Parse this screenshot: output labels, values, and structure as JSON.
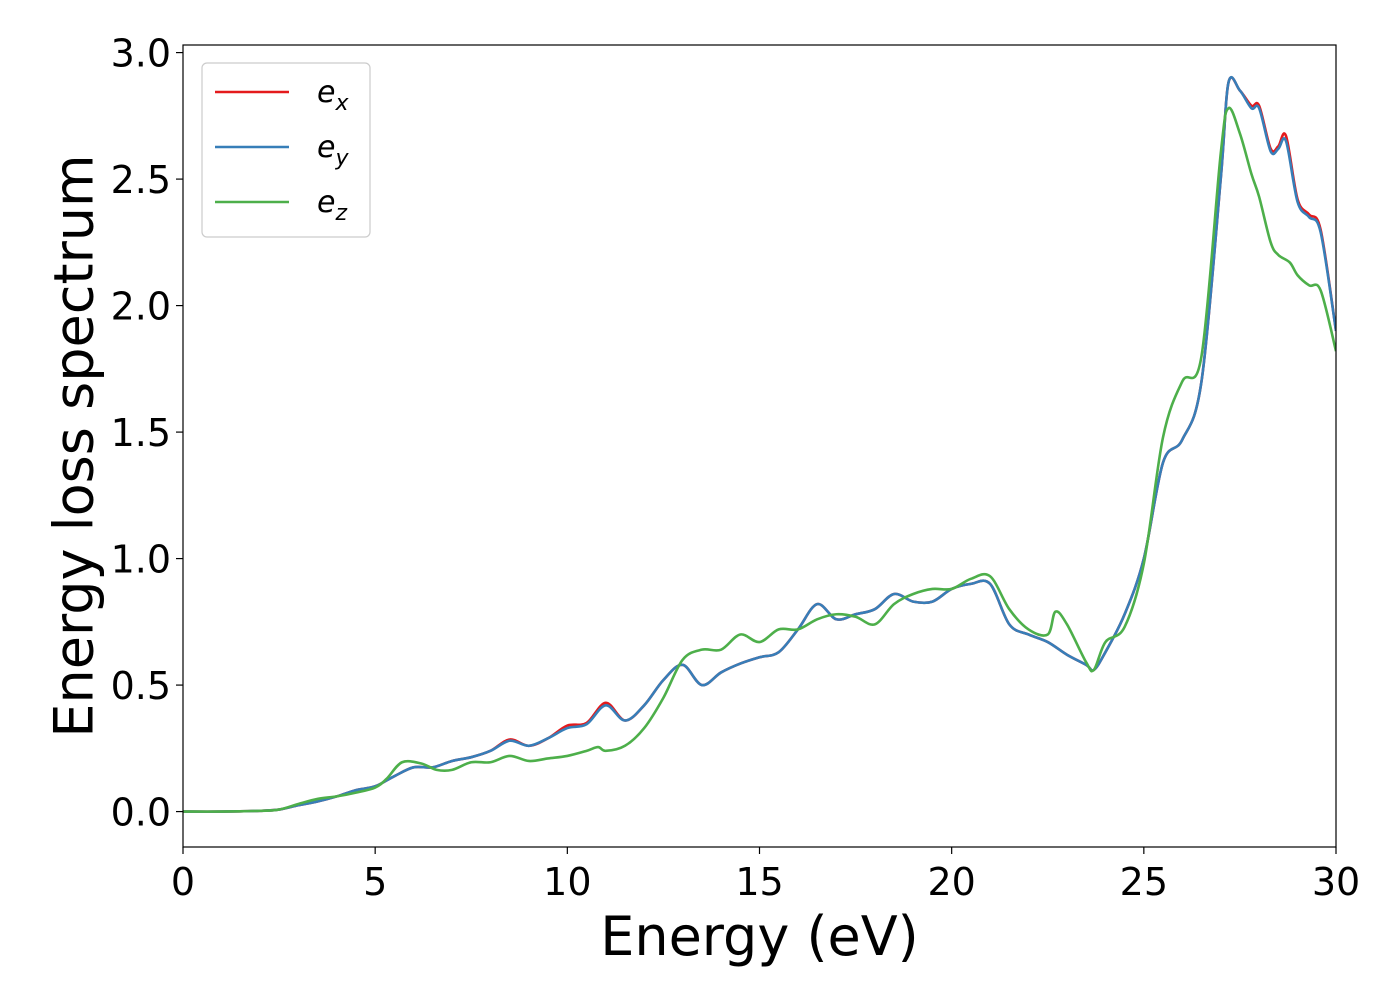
{
  "chart_data": {
    "type": "line",
    "xlabel": "Energy (eV)",
    "ylabel": "Energy loss spectrum",
    "xlim": [
      0,
      30
    ],
    "ylim": [
      -0.14,
      3.03
    ],
    "xticks": [
      0,
      5,
      10,
      15,
      20,
      25,
      30
    ],
    "xtick_labels": [
      "0",
      "5",
      "10",
      "15",
      "20",
      "25",
      "30"
    ],
    "yticks": [
      0.0,
      0.5,
      1.0,
      1.5,
      2.0,
      2.5,
      3.0
    ],
    "ytick_labels": [
      "0.0",
      "0.5",
      "1.0",
      "1.5",
      "2.0",
      "2.5",
      "3.0"
    ],
    "grid": false,
    "legend_position": "top-left",
    "series": [
      {
        "name": "e",
        "sub": "x",
        "color": "#e41a1c",
        "x": [
          0,
          1,
          2,
          2.5,
          3,
          3.5,
          4,
          4.5,
          5,
          5.5,
          6,
          6.5,
          7,
          7.5,
          8,
          8.5,
          9,
          9.5,
          10,
          10.5,
          11,
          11.5,
          12,
          12.5,
          13,
          13.5,
          14,
          14.5,
          15,
          15.5,
          16,
          16.5,
          17,
          17.5,
          18,
          18.5,
          19,
          19.5,
          20,
          20.5,
          21,
          21.5,
          22,
          22.5,
          23,
          23.5,
          23.7,
          24,
          24.5,
          25,
          25.5,
          26,
          26.5,
          27,
          27.2,
          27.5,
          27.8,
          28,
          28.3,
          28.5,
          28.7,
          29,
          29.3,
          29.6,
          30
        ],
        "y": [
          0,
          0,
          0.003,
          0.008,
          0.025,
          0.04,
          0.06,
          0.085,
          0.1,
          0.14,
          0.175,
          0.175,
          0.2,
          0.215,
          0.24,
          0.285,
          0.26,
          0.29,
          0.34,
          0.35,
          0.43,
          0.36,
          0.42,
          0.52,
          0.58,
          0.5,
          0.55,
          0.585,
          0.61,
          0.63,
          0.72,
          0.82,
          0.76,
          0.78,
          0.8,
          0.86,
          0.83,
          0.83,
          0.88,
          0.9,
          0.9,
          0.74,
          0.7,
          0.67,
          0.62,
          0.58,
          0.56,
          0.63,
          0.78,
          1.0,
          1.38,
          1.47,
          1.7,
          2.5,
          2.88,
          2.85,
          2.79,
          2.79,
          2.62,
          2.63,
          2.67,
          2.42,
          2.36,
          2.3,
          1.9
        ]
      },
      {
        "name": "e",
        "sub": "y",
        "color": "#377eb8",
        "x": [
          0,
          1,
          2,
          2.5,
          3,
          3.5,
          4,
          4.5,
          5,
          5.5,
          6,
          6.5,
          7,
          7.5,
          8,
          8.5,
          9,
          9.5,
          10,
          10.5,
          11,
          11.5,
          12,
          12.5,
          13,
          13.5,
          14,
          14.5,
          15,
          15.5,
          16,
          16.5,
          17,
          17.5,
          18,
          18.5,
          19,
          19.5,
          20,
          20.5,
          21,
          21.5,
          22,
          22.5,
          23,
          23.5,
          23.7,
          24,
          24.5,
          25,
          25.5,
          26,
          26.5,
          27,
          27.2,
          27.5,
          27.8,
          28,
          28.3,
          28.5,
          28.7,
          29,
          29.3,
          29.6,
          30
        ],
        "y": [
          0,
          0,
          0.003,
          0.008,
          0.025,
          0.04,
          0.06,
          0.085,
          0.1,
          0.14,
          0.175,
          0.175,
          0.2,
          0.215,
          0.24,
          0.28,
          0.26,
          0.29,
          0.33,
          0.345,
          0.42,
          0.36,
          0.42,
          0.52,
          0.58,
          0.5,
          0.55,
          0.585,
          0.61,
          0.63,
          0.72,
          0.82,
          0.76,
          0.78,
          0.8,
          0.86,
          0.83,
          0.83,
          0.88,
          0.9,
          0.9,
          0.74,
          0.7,
          0.67,
          0.62,
          0.58,
          0.56,
          0.63,
          0.78,
          1.0,
          1.38,
          1.47,
          1.7,
          2.5,
          2.88,
          2.85,
          2.78,
          2.78,
          2.61,
          2.62,
          2.65,
          2.41,
          2.35,
          2.29,
          1.9
        ]
      },
      {
        "name": "e",
        "sub": "z",
        "color": "#4daf4a",
        "x": [
          0,
          1,
          2,
          2.5,
          3,
          3.5,
          4,
          4.5,
          5,
          5.3,
          5.7,
          6.2,
          6.6,
          7,
          7.5,
          8,
          8.5,
          9,
          9.5,
          10,
          10.5,
          10.8,
          11,
          11.5,
          12,
          12.5,
          13,
          13.5,
          14,
          14.5,
          15,
          15.5,
          16,
          16.5,
          17,
          17.5,
          18,
          18.5,
          19,
          19.5,
          20,
          20.5,
          21,
          21.5,
          22,
          22.5,
          22.7,
          23,
          23.5,
          23.7,
          24,
          24.5,
          25,
          25.5,
          26,
          26.5,
          27,
          27.2,
          27.5,
          27.8,
          28,
          28.3,
          28.5,
          28.8,
          29,
          29.3,
          29.6,
          30
        ],
        "y": [
          0,
          0,
          0.003,
          0.008,
          0.03,
          0.05,
          0.06,
          0.075,
          0.095,
          0.13,
          0.195,
          0.19,
          0.165,
          0.165,
          0.195,
          0.195,
          0.22,
          0.2,
          0.21,
          0.22,
          0.24,
          0.255,
          0.24,
          0.26,
          0.33,
          0.45,
          0.6,
          0.64,
          0.64,
          0.7,
          0.67,
          0.72,
          0.72,
          0.76,
          0.78,
          0.77,
          0.74,
          0.82,
          0.86,
          0.88,
          0.88,
          0.92,
          0.93,
          0.8,
          0.72,
          0.7,
          0.79,
          0.74,
          0.59,
          0.56,
          0.67,
          0.73,
          0.98,
          1.48,
          1.7,
          1.8,
          2.6,
          2.78,
          2.68,
          2.52,
          2.43,
          2.25,
          2.2,
          2.17,
          2.12,
          2.08,
          2.06,
          1.82
        ]
      }
    ]
  }
}
